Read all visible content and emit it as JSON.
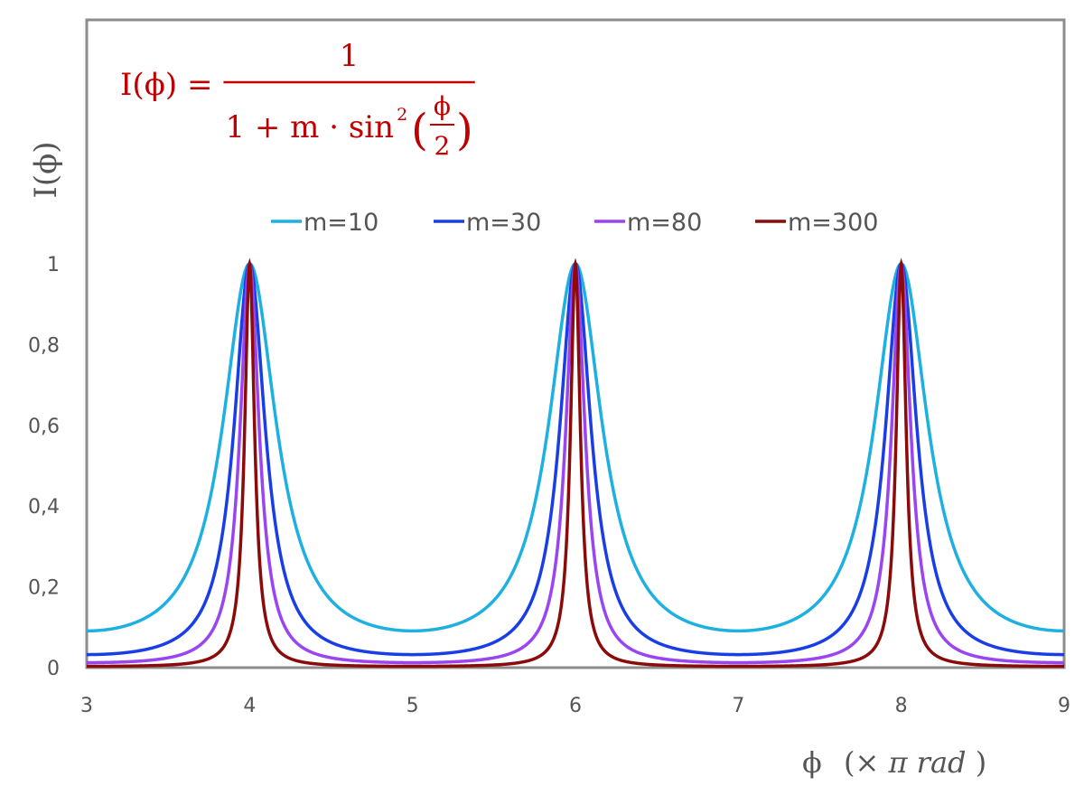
{
  "chart_data": {
    "type": "line",
    "title": "",
    "formula": {
      "lhs": "I(ϕ) =",
      "numerator": "1",
      "denominator_main": "1 + m · sin",
      "denominator_exp": "2",
      "frac_num": "ϕ",
      "frac_den": "2"
    },
    "xlabel": "ϕ",
    "xlabel_unit_prefix": "(× ",
    "xlabel_unit": "π rad",
    "xlabel_unit_suffix": ")",
    "ylabel": "I(ϕ)",
    "xlim": [
      3,
      9
    ],
    "ylim": [
      0,
      1
    ],
    "x_ticks": [
      "3",
      "4",
      "5",
      "6",
      "7",
      "8",
      "9"
    ],
    "y_ticks": [
      "0",
      "0,2",
      "0,4",
      "0,6",
      "0,8",
      "1"
    ],
    "grid": false,
    "legend_placement": "top",
    "function": "I = 1 / (1 + m · sin²(π·x/2)), x in units of π rad",
    "series": [
      {
        "name": "m=10",
        "m": 10,
        "color": "#1fb0e2"
      },
      {
        "name": "m=30",
        "m": 30,
        "color": "#1a3ee6"
      },
      {
        "name": "m=80",
        "m": 80,
        "color": "#9a45f2"
      },
      {
        "name": "m=300",
        "m": 300,
        "color": "#8b0b0b"
      }
    ]
  },
  "colors": {
    "formula": "#c00000",
    "axis": "#8c8c8c",
    "text": "#555555"
  }
}
